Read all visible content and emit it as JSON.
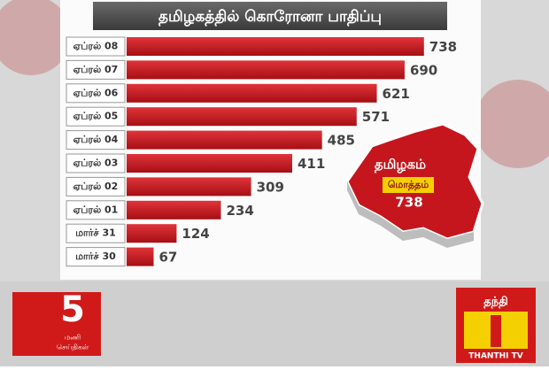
{
  "chart_data": {
    "type": "hbar",
    "title": "தமிழகத்தில் கொரோனா பாதிப்பு",
    "categories": [
      "ஏப்ரல் 08",
      "ஏப்ரல் 07",
      "ஏப்ரல் 06",
      "ஏப்ரல் 05",
      "ஏப்ரல் 04",
      "ஏப்ரல் 03",
      "ஏப்ரல் 02",
      "ஏப்ரல் 01",
      "மார்ச் 31",
      "மார்ச் 30"
    ],
    "values": [
      738,
      690,
      621,
      571,
      485,
      411,
      309,
      234,
      124,
      67
    ],
    "color": "#c4161c",
    "map_region": "தமிழகம்",
    "map_total_label": "மொத்தம்",
    "map_total": 738
  },
  "overlay": {
    "bulletin_number": "5",
    "bulletin_label_1": "மணி",
    "bulletin_label_2": "செய்திகள்",
    "channel_tamil": "தந்தி",
    "channel_name": "THANTHI TV"
  }
}
